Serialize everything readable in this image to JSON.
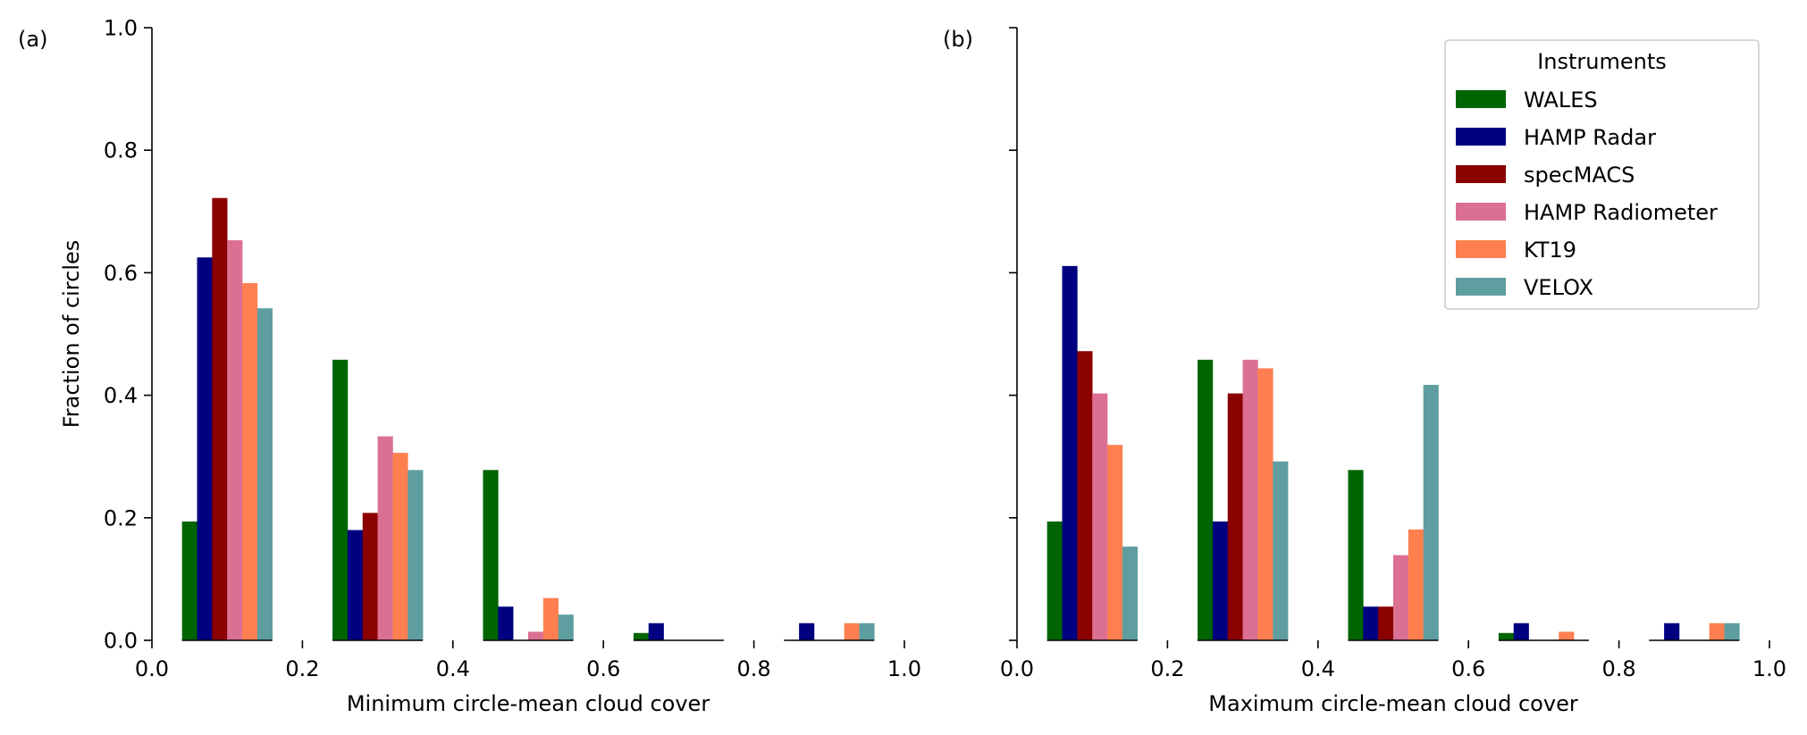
{
  "legend": {
    "title": "Instruments",
    "entries": [
      "WALES",
      "HAMP Radar",
      "specMACS",
      "HAMP Radiometer",
      "KT19",
      "VELOX"
    ],
    "colors": [
      "#006400",
      "#000080",
      "#8b0000",
      "#db7093",
      "#ff7f50",
      "#5f9ea0"
    ],
    "placement": "upper right of panel (b)"
  },
  "chart_data": [
    {
      "type": "bar",
      "panel_label": "(a)",
      "xlabel": "Minimum circle-mean cloud cover",
      "ylabel": "Fraction of circles",
      "xlim": [
        0.0,
        1.0
      ],
      "ylim": [
        0.0,
        1.0
      ],
      "xticks": [
        "0.0",
        "0.2",
        "0.4",
        "0.6",
        "0.8",
        "1.0"
      ],
      "yticks": [
        "0.0",
        "0.2",
        "0.4",
        "0.6",
        "0.8",
        "1.0"
      ],
      "grid": false,
      "bin_edges": [
        [
          0.04,
          0.16
        ],
        [
          0.24,
          0.36
        ],
        [
          0.44,
          0.56
        ],
        [
          0.64,
          0.76
        ],
        [
          0.84,
          0.96
        ]
      ],
      "series": [
        {
          "name": "WALES",
          "values": [
            0.194,
            0.458,
            0.278,
            0.012,
            0.0
          ]
        },
        {
          "name": "HAMP Radar",
          "values": [
            0.625,
            0.18,
            0.055,
            0.028,
            0.028
          ]
        },
        {
          "name": "specMACS",
          "values": [
            0.722,
            0.208,
            0.0,
            0.0,
            0.0
          ]
        },
        {
          "name": "HAMP Radiometer",
          "values": [
            0.653,
            0.333,
            0.014,
            0.0,
            0.0
          ]
        },
        {
          "name": "KT19",
          "values": [
            0.583,
            0.306,
            0.069,
            0.0,
            0.028
          ]
        },
        {
          "name": "VELOX",
          "values": [
            0.542,
            0.278,
            0.042,
            0.0,
            0.028
          ]
        }
      ]
    },
    {
      "type": "bar",
      "panel_label": "(b)",
      "xlabel": "Maximum circle-mean cloud cover",
      "ylabel": "",
      "xlim": [
        0.0,
        1.0
      ],
      "ylim": [
        0.0,
        1.0
      ],
      "xticks": [
        "0.0",
        "0.2",
        "0.4",
        "0.6",
        "0.8",
        "1.0"
      ],
      "yticks": [],
      "grid": false,
      "bin_edges": [
        [
          0.04,
          0.16
        ],
        [
          0.24,
          0.36
        ],
        [
          0.44,
          0.56
        ],
        [
          0.64,
          0.76
        ],
        [
          0.84,
          0.96
        ]
      ],
      "series": [
        {
          "name": "WALES",
          "values": [
            0.194,
            0.458,
            0.278,
            0.012,
            0.0
          ]
        },
        {
          "name": "HAMP Radar",
          "values": [
            0.611,
            0.194,
            0.055,
            0.028,
            0.028
          ]
        },
        {
          "name": "specMACS",
          "values": [
            0.472,
            0.403,
            0.055,
            0.0,
            0.0
          ]
        },
        {
          "name": "HAMP Radiometer",
          "values": [
            0.403,
            0.458,
            0.139,
            0.0,
            0.0
          ]
        },
        {
          "name": "KT19",
          "values": [
            0.319,
            0.444,
            0.181,
            0.014,
            0.028
          ]
        },
        {
          "name": "VELOX",
          "values": [
            0.153,
            0.292,
            0.417,
            0.0,
            0.028
          ]
        }
      ]
    }
  ]
}
